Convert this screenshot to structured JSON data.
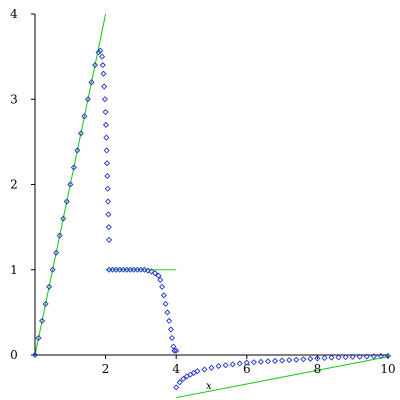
{
  "chart_data": {
    "type": "scatter",
    "xlabel": "x",
    "ylabel": "",
    "xlim": [
      0,
      10
    ],
    "ylim": [
      -0.5,
      4
    ],
    "x_ticks": [
      2,
      4,
      6,
      8,
      10
    ],
    "x_tick_labels": [
      "2",
      "4",
      "6",
      "8",
      "10"
    ],
    "y_ticks": [
      0,
      1,
      2,
      3,
      4
    ],
    "y_tick_labels": [
      "0",
      "1",
      "2",
      "3",
      "4"
    ],
    "grid": false,
    "colors": {
      "points": "#2233cc",
      "lines": "#22cc22",
      "axes": "#000000"
    },
    "lines": [
      {
        "x": [
          0,
          2
        ],
        "y": [
          0,
          4
        ]
      },
      {
        "x": [
          2,
          4
        ],
        "y": [
          1,
          1
        ]
      },
      {
        "x": [
          4,
          10
        ],
        "y": [
          -0.5,
          -0.02
        ]
      }
    ],
    "series": [
      {
        "marker": "diamond",
        "x": [
          0,
          0.1,
          0.2,
          0.3,
          0.4,
          0.5,
          0.6,
          0.7,
          0.8,
          0.9,
          1.0,
          1.1,
          1.2,
          1.3,
          1.4,
          1.5,
          1.6,
          1.7,
          1.8,
          1.85,
          1.9,
          1.92,
          1.94,
          1.96,
          1.98,
          2.0,
          2.01,
          2.02,
          2.03,
          2.04,
          2.05,
          2.06,
          2.07,
          2.08,
          2.09,
          2.1,
          2.1,
          2.2,
          2.3,
          2.4,
          2.5,
          2.6,
          2.7,
          2.8,
          2.9,
          3.0,
          3.1,
          3.2,
          3.3,
          3.4,
          3.5,
          3.55,
          3.6,
          3.65,
          3.7,
          3.75,
          3.8,
          3.85,
          3.88,
          3.92,
          3.95,
          4.0,
          4.0,
          4.1,
          4.2,
          4.3,
          4.4,
          4.5,
          4.6,
          4.8,
          5.0,
          5.2,
          5.4,
          5.6,
          5.8,
          6.0,
          6.2,
          6.4,
          6.6,
          6.8,
          7.0,
          7.2,
          7.4,
          7.6,
          7.8,
          8.0,
          8.2,
          8.4,
          8.6,
          8.8,
          9.0,
          9.2,
          9.4,
          9.6,
          9.8,
          10.0
        ],
        "y": [
          0,
          0.2,
          0.4,
          0.6,
          0.8,
          1.0,
          1.2,
          1.4,
          1.6,
          1.8,
          2.0,
          2.2,
          2.4,
          2.6,
          2.8,
          3.0,
          3.2,
          3.4,
          3.55,
          3.57,
          3.5,
          3.4,
          3.3,
          3.15,
          3.0,
          2.85,
          2.7,
          2.55,
          2.4,
          2.25,
          2.1,
          1.95,
          1.8,
          1.65,
          1.5,
          1.35,
          1.0,
          1.0,
          1.0,
          1.0,
          1.0,
          1.0,
          1.0,
          1.0,
          1.0,
          1.0,
          1.0,
          0.99,
          0.98,
          0.96,
          0.93,
          0.88,
          0.8,
          0.7,
          0.6,
          0.5,
          0.4,
          0.3,
          0.2,
          0.1,
          0.05,
          0.05,
          -0.38,
          -0.32,
          -0.28,
          -0.25,
          -0.23,
          -0.21,
          -0.19,
          -0.17,
          -0.15,
          -0.13,
          -0.12,
          -0.11,
          -0.1,
          -0.09,
          -0.085,
          -0.08,
          -0.075,
          -0.07,
          -0.065,
          -0.06,
          -0.055,
          -0.05,
          -0.045,
          -0.04,
          -0.035,
          -0.03,
          -0.028,
          -0.025,
          -0.022,
          -0.02,
          -0.018,
          -0.015,
          -0.012,
          -0.01
        ]
      }
    ]
  }
}
